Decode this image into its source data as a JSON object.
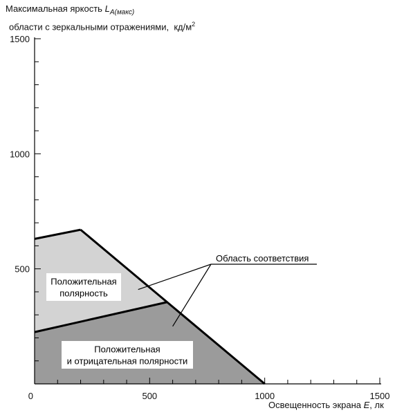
{
  "chart_data": {
    "type": "area",
    "title": "",
    "ylabel": {
      "line1_prefix": "Максимальная яркость",
      "symbol": "L",
      "subscript": "A(макс)",
      "line2": "области с зеркальными отражениями,",
      "unit": "кд/м",
      "unit_power": "2"
    },
    "xlabel": {
      "prefix": "Освещенность экрана",
      "symbol": "E",
      "suffix": ", лк"
    },
    "xlim": [
      0,
      1500
    ],
    "ylim": [
      0,
      1500
    ],
    "x_ticks": [
      "0",
      "500",
      "1000",
      "1500"
    ],
    "y_ticks": [
      "500",
      "1000",
      "1500"
    ],
    "x_minor_step": 100,
    "y_minor_step": 100,
    "regions": [
      {
        "name": "positive_only",
        "color": "#d3d3d3",
        "polygon": [
          [
            0,
            630
          ],
          [
            200,
            670
          ],
          [
            575,
            355
          ],
          [
            0,
            225
          ]
        ],
        "label_lines": [
          "Положительная",
          "полярность"
        ]
      },
      {
        "name": "positive_and_negative",
        "color": "#9b9b9b",
        "polygon": [
          [
            0,
            225
          ],
          [
            575,
            355
          ],
          [
            1000,
            0
          ],
          [
            0,
            0
          ]
        ],
        "label_lines": [
          "Положительная",
          "и отрицательная полярности"
        ]
      }
    ],
    "boundary_line": [
      [
        0,
        225
      ],
      [
        575,
        355
      ]
    ],
    "compliance_edge": [
      [
        200,
        670
      ],
      [
        1000,
        0
      ]
    ],
    "annotation": {
      "text": "Область соответствия",
      "targets": [
        [
          450,
          410
        ],
        [
          600,
          250
        ]
      ]
    }
  }
}
